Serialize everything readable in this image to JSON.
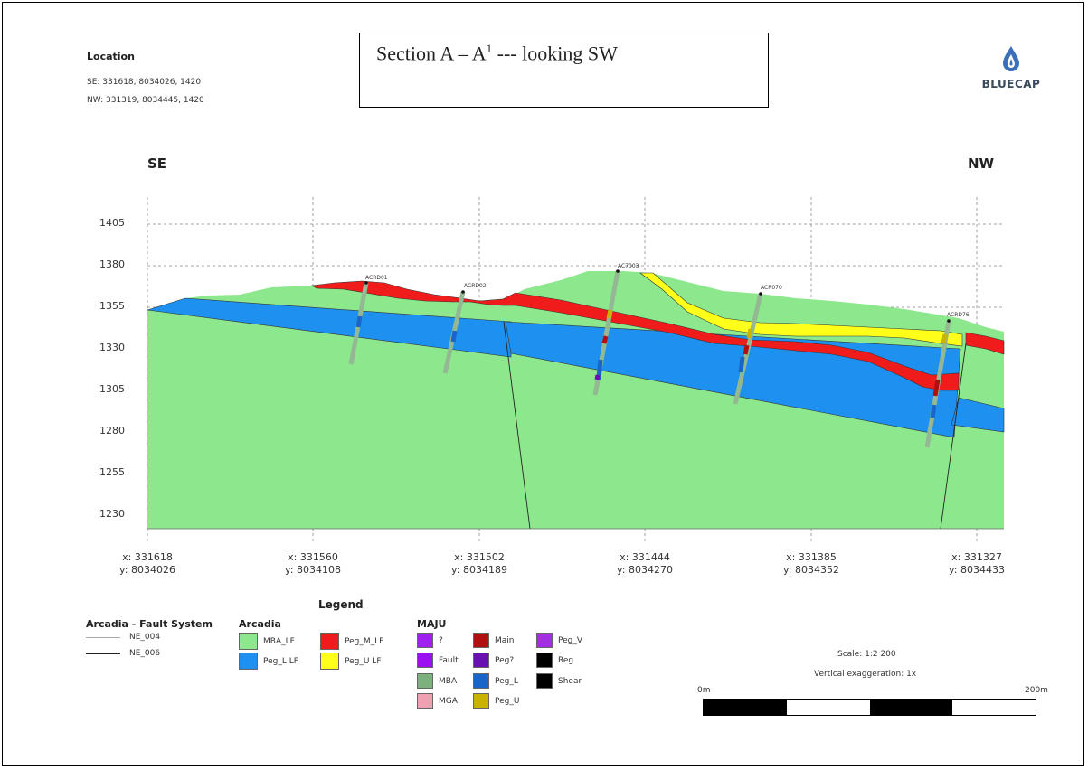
{
  "location": {
    "title": "Location",
    "se": "SE:   331618, 8034026, 1420",
    "nw": "NW:   331319, 8034445, 1420"
  },
  "title": {
    "main": "Section A – A",
    "superscript": "1",
    "suffix": " --- looking SW"
  },
  "logo": {
    "text": "BLUECAP",
    "icon": "flame-drop-icon"
  },
  "section": {
    "left_label": "SE",
    "right_label": "NW",
    "elevation_ticks": [
      "1405",
      "1380",
      "1355",
      "1330",
      "1305",
      "1280",
      "1255",
      "1230"
    ],
    "elevation_values": [
      1405,
      1380,
      1355,
      1330,
      1305,
      1280,
      1255,
      1230
    ],
    "position_ticks": [
      {
        "x": "x: 331618",
        "y": "y: 8034026"
      },
      {
        "x": "x: 331560",
        "y": "y: 8034108"
      },
      {
        "x": "x: 331502",
        "y": "y: 8034189"
      },
      {
        "x": "x: 331444",
        "y": "y: 8034270"
      },
      {
        "x": "x: 331385",
        "y": "y: 8034352"
      },
      {
        "x": "x: 331327",
        "y": "y: 8034433"
      }
    ],
    "drillholes": [
      "ACRD01",
      "ACRD02",
      "AC7003",
      "ACR070",
      "ACRD76"
    ],
    "colors": {
      "mba_lf": "#8de88d",
      "peg_l_lf": "#1e90f0",
      "peg_m_lf": "#f01c1c",
      "peg_u_lf": "#ffff1a",
      "drill": "#93b893"
    }
  },
  "legend": {
    "title": "Legend",
    "fault_system": {
      "title": "Arcadia - Fault System",
      "items": [
        "NE_004",
        "NE_006"
      ]
    },
    "arcadia": {
      "title": "Arcadia",
      "items": [
        {
          "label": "MBA_LF",
          "color": "#8de88d"
        },
        {
          "label": "Peg_M_LF",
          "color": "#f01c1c"
        },
        {
          "label": "Peg_L LF",
          "color": "#1e90f0"
        },
        {
          "label": "Peg_U LF",
          "color": "#ffff1a"
        }
      ]
    },
    "maju": {
      "title": "MAJU",
      "items": [
        {
          "label": "?",
          "color": "#a020f0"
        },
        {
          "label": "Main",
          "color": "#b01010"
        },
        {
          "label": "Peg_V",
          "color": "#a030e0"
        },
        {
          "label": "Fault",
          "color": "#9a10f0"
        },
        {
          "label": "Peg?",
          "color": "#6a10b0"
        },
        {
          "label": "Reg",
          "color": "#000000"
        },
        {
          "label": "MBA",
          "color": "#7cb07c"
        },
        {
          "label": "Peg_L",
          "color": "#1a66c8"
        },
        {
          "label": "Shear",
          "color": "#000000"
        },
        {
          "label": "MGA",
          "color": "#f0a0b0"
        },
        {
          "label": "Peg_U",
          "color": "#c8b400"
        }
      ]
    }
  },
  "scale": {
    "text": "Scale: 1:2 200",
    "vertical": "Vertical exaggeration: 1x",
    "start": "0m",
    "end": "200m"
  }
}
